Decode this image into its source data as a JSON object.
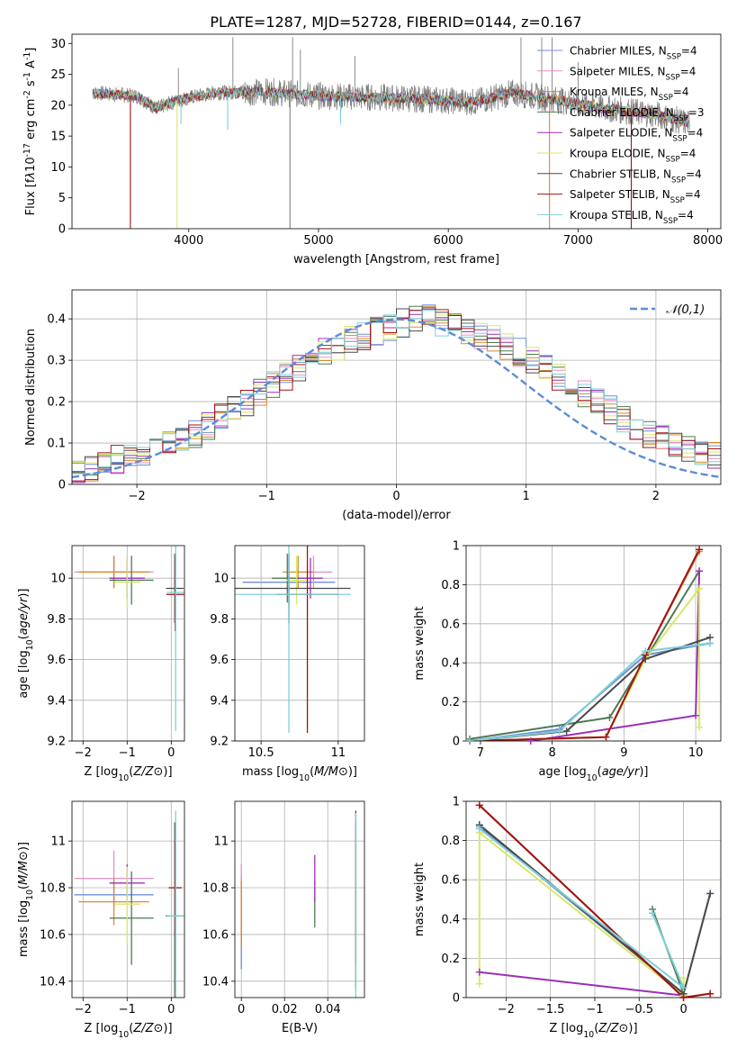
{
  "page_title": "PLATE=1287, MJD=52728, FIBERID=0144, z=0.167",
  "series_colors": [
    "#6f8fd8",
    "#e88fc4",
    "#d98a2e",
    "#4d7a52",
    "#9b2fb4",
    "#d8e86a",
    "#4a4a4a",
    "#9e1414",
    "#7fcfd6"
  ],
  "gray_color": "#808080",
  "chart_data": [
    {
      "type": "line",
      "panel": "spectrum",
      "title": "PLATE=1287, MJD=52728, FIBERID=0144, z=0.167",
      "xlabel": "wavelength [Angstrom, rest frame]",
      "ylabel": "Flux [f$_\\lambda$10$^{-17}$ erg cm$^{-2}$ s$^{-1}$ A$^{-1}$]",
      "xlim": [
        3100,
        8100
      ],
      "ylim": [
        0,
        31.5
      ],
      "xticks": [
        4000,
        5000,
        6000,
        7000,
        8000
      ],
      "yticks": [
        0,
        5,
        10,
        15,
        20,
        25,
        30
      ],
      "grid": false,
      "legend_position": "top-right",
      "data_range": [
        3260,
        7860
      ],
      "continuum": [
        [
          3260,
          22
        ],
        [
          3600,
          21.5
        ],
        [
          3750,
          19.5
        ],
        [
          3950,
          21
        ],
        [
          4200,
          22
        ],
        [
          4600,
          22.2
        ],
        [
          5000,
          21.5
        ],
        [
          5400,
          21.3
        ],
        [
          5800,
          21
        ],
        [
          6200,
          20.5
        ],
        [
          6500,
          22
        ],
        [
          6800,
          21
        ],
        [
          7200,
          19.5
        ],
        [
          7600,
          18.5
        ],
        [
          7860,
          17
        ]
      ],
      "spikes": [
        [
          3920,
          26
        ],
        [
          4340,
          31
        ],
        [
          4800,
          31
        ],
        [
          4860,
          29
        ],
        [
          5280,
          28
        ],
        [
          6560,
          31
        ],
        [
          6720,
          31
        ],
        [
          6800,
          31
        ],
        [
          7000,
          27
        ]
      ],
      "dips": [
        [
          3550,
          0
        ],
        [
          3910,
          0
        ],
        [
          4780,
          0
        ],
        [
          6780,
          0
        ],
        [
          7410,
          0
        ],
        [
          3940,
          17
        ],
        [
          4300,
          16
        ],
        [
          5170,
          17
        ]
      ],
      "series": [
        {
          "name": "Chabrier MILES, N$_{SSP}$=4",
          "legend": "Chabrier MILES, N_SSP=4"
        },
        {
          "name": "Salpeter MILES, N$_{SSP}$=4",
          "legend": "Salpeter MILES, N_SSP=4"
        },
        {
          "name": "Kroupa MILES, N$_{SSP}$=4",
          "legend": "Kroupa MILES, N_SSP=4"
        },
        {
          "name": "Chabrier ELODIE, N$_{SSP}$=3",
          "legend": "Chabrier ELODIE, N_SSP=3"
        },
        {
          "name": "Salpeter ELODIE, N$_{SSP}$=4",
          "legend": "Salpeter ELODIE, N_SSP=4"
        },
        {
          "name": "Kroupa ELODIE, N$_{SSP}$=4",
          "legend": "Kroupa ELODIE, N_SSP=4"
        },
        {
          "name": "Chabrier STELIB, N$_{SSP}$=4",
          "legend": "Chabrier STELIB, N_SSP=4"
        },
        {
          "name": "Salpeter STELIB, N$_{SSP}$=4",
          "legend": "Salpeter STELIB, N_SSP=4"
        },
        {
          "name": "Kroupa STELIB, N$_{SSP}$=4",
          "legend": "Kroupa STELIB, N_SSP=4"
        }
      ]
    },
    {
      "type": "bar",
      "panel": "residuals",
      "xlabel": "(data-model)/error",
      "ylabel": "Normed distribution",
      "xlim": [
        -2.5,
        2.5
      ],
      "ylim": [
        0,
        0.47
      ],
      "xticks": [
        -2,
        -1,
        0,
        1,
        2
      ],
      "yticks": [
        0.0,
        0.1,
        0.2,
        0.3,
        0.4
      ],
      "grid": true,
      "legend_position": "top-right",
      "legend_label": "$\\mathcal{N}(0,1)$",
      "bin_width": 0.1,
      "bin_start": -2.5,
      "base": [
        0.03,
        0.04,
        0.05,
        0.06,
        0.07,
        0.08,
        0.09,
        0.1,
        0.11,
        0.12,
        0.14,
        0.16,
        0.18,
        0.2,
        0.22,
        0.24,
        0.26,
        0.28,
        0.3,
        0.32,
        0.33,
        0.35,
        0.36,
        0.37,
        0.38,
        0.39,
        0.4,
        0.4,
        0.39,
        0.38,
        0.37,
        0.36,
        0.35,
        0.33,
        0.32,
        0.3,
        0.28,
        0.26,
        0.24,
        0.22,
        0.2,
        0.18,
        0.16,
        0.14,
        0.12,
        0.11,
        0.1,
        0.09,
        0.08,
        0.07
      ]
    },
    {
      "type": "scatter",
      "panel": "age-vs-Z",
      "xlabel": "Z [log$_{10}$($Z/Z_\\odot$)]",
      "ylabel": "age  [log$_{10}$($age/yr$)]",
      "xlim": [
        -2.25,
        0.3
      ],
      "ylim": [
        9.2,
        10.16
      ],
      "xticks": [
        -2,
        -1,
        0
      ],
      "yticks": [
        9.2,
        9.4,
        9.6,
        9.8,
        10.0
      ],
      "grid": true,
      "points": [
        {
          "x": -1.3,
          "xerr": 0.8,
          "y": 10.03,
          "yerr": 0.07
        },
        {
          "x": -1.3,
          "xerr": 0.9,
          "y": 10.03,
          "yerr": 0.08
        },
        {
          "x": -1.3,
          "xerr": 0.8,
          "y": 10.03,
          "yerr": 0.08
        },
        {
          "x": -0.9,
          "xerr": 0.5,
          "y": 9.99,
          "yerr": 0.12
        },
        {
          "x": -1.0,
          "xerr": 0.4,
          "y": 10.0,
          "yerr": 0.1
        },
        {
          "x": -1.0,
          "xerr": 0.3,
          "y": 9.98,
          "yerr": 0.12
        },
        {
          "x": 0.08,
          "xerr": 0.2,
          "y": 9.95,
          "yerr": 0.17
        },
        {
          "x": 0.09,
          "xerr": 0.2,
          "y": 9.92,
          "yerr": 0.18
        },
        {
          "x": 0.1,
          "xerr": 0.2,
          "y": 9.93,
          "yerr": 0.68
        }
      ]
    },
    {
      "type": "scatter",
      "panel": "age-vs-mass",
      "xlabel": "mass [log$_{10}$($M/M_\\odot$)]",
      "ylabel": "",
      "xlim": [
        10.33,
        11.17
      ],
      "ylim": [
        9.2,
        10.16
      ],
      "xticks": [
        10.5,
        11.0
      ],
      "yticks": [
        9.2,
        9.4,
        9.6,
        9.8,
        10.0
      ],
      "grid": true,
      "points": [
        {
          "x": 10.68,
          "xerr": 0.3,
          "y": 9.98,
          "yerr": 0.12
        },
        {
          "x": 10.84,
          "xerr": 0.12,
          "y": 10.03,
          "yerr": 0.08
        },
        {
          "x": 10.74,
          "xerr": 0.1,
          "y": 10.03,
          "yerr": 0.08
        },
        {
          "x": 10.67,
          "xerr": 0.1,
          "y": 10.0,
          "yerr": 0.12
        },
        {
          "x": 10.82,
          "xerr": 0.08,
          "y": 10.0,
          "yerr": 0.1
        },
        {
          "x": 10.73,
          "xerr": 0.07,
          "y": 9.99,
          "yerr": 0.12
        },
        {
          "x": 10.68,
          "xerr": 0.4,
          "y": 9.95,
          "yerr": 0.17
        },
        {
          "x": 10.8,
          "xerr": 0.2,
          "y": 9.92,
          "yerr": 0.68
        },
        {
          "x": 10.68,
          "xerr": 0.4,
          "y": 9.92,
          "yerr": 0.68
        }
      ]
    },
    {
      "type": "line",
      "panel": "weight-vs-age",
      "xlabel": "age  [log$_{10}$($age/yr$)]",
      "ylabel": "mass weight",
      "xlim": [
        6.8,
        10.35
      ],
      "ylim": [
        0,
        1.0
      ],
      "xticks": [
        7,
        8,
        9,
        10
      ],
      "yticks": [
        0.0,
        0.2,
        0.4,
        0.6,
        0.8,
        1.0
      ],
      "grid": true,
      "series": [
        {
          "x": [
            6.85,
            8.1,
            9.3,
            10.2
          ],
          "y": [
            0.0,
            0.06,
            0.44,
            0.5
          ]
        },
        {
          "x": [
            6.85,
            8.75,
            9.3,
            10.05
          ],
          "y": [
            0.0,
            0.02,
            0.44,
            0.98
          ]
        },
        {
          "x": [
            6.85,
            8.75,
            9.3,
            10.05
          ],
          "y": [
            0.0,
            0.02,
            0.44,
            0.97
          ]
        },
        {
          "x": [
            6.85,
            8.8,
            9.3,
            10.05
          ],
          "y": [
            0.01,
            0.12,
            0.42,
            0.87
          ]
        },
        {
          "x": [
            7.7,
            10.0,
            10.05
          ],
          "y": [
            0.0,
            0.13,
            0.87
          ]
        },
        {
          "x": [
            6.85,
            8.75,
            9.3,
            10.05,
            10.05
          ],
          "y": [
            0.0,
            0.02,
            0.42,
            0.78,
            0.07
          ]
        },
        {
          "x": [
            6.85,
            8.2,
            9.3,
            10.2
          ],
          "y": [
            0.0,
            0.05,
            0.42,
            0.53
          ]
        },
        {
          "x": [
            6.85,
            8.75,
            9.3,
            10.05
          ],
          "y": [
            0.0,
            0.02,
            0.44,
            0.98
          ]
        },
        {
          "x": [
            6.85,
            8.1,
            9.3,
            10.2
          ],
          "y": [
            0.0,
            0.05,
            0.46,
            0.5
          ]
        }
      ]
    },
    {
      "type": "scatter",
      "panel": "mass-vs-Z",
      "xlabel": "Z [log$_{10}$($Z/Z_\\odot$)]",
      "ylabel": "mass [log$_{10}$($M/M_\\odot$)]",
      "xlim": [
        -2.25,
        0.3
      ],
      "ylim": [
        10.33,
        11.17
      ],
      "xticks": [
        -2,
        -1,
        0
      ],
      "yticks": [
        10.4,
        10.6,
        10.8,
        11.0
      ],
      "grid": true,
      "points": [
        {
          "x": -1.3,
          "xerr": 0.9,
          "y": 10.77,
          "yerr": 0.05
        },
        {
          "x": -1.3,
          "xerr": 0.9,
          "y": 10.84,
          "yerr": 0.12
        },
        {
          "x": -1.3,
          "xerr": 0.8,
          "y": 10.74,
          "yerr": 0.1
        },
        {
          "x": -0.9,
          "xerr": 0.5,
          "y": 10.67,
          "yerr": 0.2
        },
        {
          "x": -1.0,
          "xerr": 0.4,
          "y": 10.82,
          "yerr": 0.08
        },
        {
          "x": -1.0,
          "xerr": 0.3,
          "y": 10.73,
          "yerr": 0.16
        },
        {
          "x": 0.08,
          "xerr": 0.2,
          "y": 10.68,
          "yerr": 0.4
        },
        {
          "x": 0.09,
          "xerr": 0.15,
          "y": 10.8,
          "yerr": 0.2
        },
        {
          "x": 0.1,
          "xerr": 0.2,
          "y": 10.68,
          "yerr": 0.45
        }
      ]
    },
    {
      "type": "scatter",
      "panel": "mass-vs-EBV",
      "xlabel": "E(B-V)",
      "ylabel": "",
      "xlim": [
        -0.003,
        0.057
      ],
      "ylim": [
        10.33,
        11.17
      ],
      "xticks": [
        0.0,
        0.02,
        0.04
      ],
      "yticks": [
        10.4,
        10.6,
        10.8,
        11.0
      ],
      "grid": true,
      "points": [
        {
          "x": 0.0,
          "y": 10.65,
          "yerr": 0.2
        },
        {
          "x": 0.0,
          "y": 10.78,
          "yerr": 0.12
        },
        {
          "x": 0.0,
          "y": 10.69,
          "yerr": 0.14
        },
        {
          "x": 0.034,
          "y": 10.73,
          "yerr": 0.1
        },
        {
          "x": 0.034,
          "y": 10.84,
          "yerr": 0.1
        },
        {
          "x": 0.053,
          "y": 10.68,
          "yerr": 0.32
        },
        {
          "x": 0.053,
          "y": 10.75,
          "yerr": 0.38
        },
        {
          "x": 0.053,
          "y": 10.78,
          "yerr": 0.3
        },
        {
          "x": 0.053,
          "y": 10.7,
          "yerr": 0.42
        }
      ]
    },
    {
      "type": "line",
      "panel": "weight-vs-Z",
      "xlabel": "Z [log$_{10}$($Z/Z_\\odot$)]",
      "ylabel": "mass weight",
      "xlim": [
        -2.45,
        0.42
      ],
      "ylim": [
        0,
        1.0
      ],
      "xticks": [
        -2.0,
        -1.5,
        -1.0,
        -0.5,
        0.0
      ],
      "yticks": [
        0.0,
        0.2,
        0.4,
        0.6,
        0.8,
        1.0
      ],
      "grid": true,
      "series": [
        {
          "x": [
            -2.3,
            0.0,
            0.3
          ],
          "y": [
            0.87,
            0.02,
            0.53
          ]
        },
        {
          "x": [
            -2.3,
            0.0,
            0.3
          ],
          "y": [
            0.98,
            0.0,
            0.02
          ]
        },
        {
          "x": [
            -2.3,
            0.0,
            0.3
          ],
          "y": [
            0.98,
            0.0,
            0.02
          ]
        },
        {
          "x": [
            -2.3,
            0.0,
            -0.35
          ],
          "y": [
            0.88,
            0.02,
            0.45
          ]
        },
        {
          "x": [
            -2.3,
            0.0
          ],
          "y": [
            0.13,
            0.01
          ]
        },
        {
          "x": [
            -2.3,
            -2.3,
            0.0,
            0.0
          ],
          "y": [
            0.07,
            0.84,
            0.01,
            0.1
          ]
        },
        {
          "x": [
            -2.3,
            0.0,
            0.3
          ],
          "y": [
            0.88,
            0.02,
            0.53
          ]
        },
        {
          "x": [
            -2.3,
            0.0,
            0.3
          ],
          "y": [
            0.98,
            0.0,
            0.02
          ]
        },
        {
          "x": [
            -2.3,
            0.0,
            -0.35
          ],
          "y": [
            0.86,
            0.05,
            0.43
          ]
        }
      ]
    }
  ]
}
